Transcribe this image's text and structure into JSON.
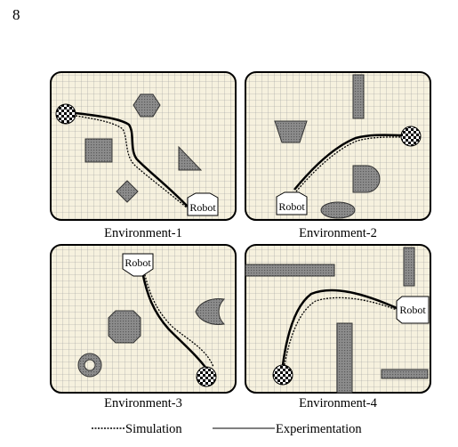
{
  "page_number": "8",
  "robot_label": "Robot",
  "panels": [
    {
      "caption": "Environment-1"
    },
    {
      "caption": "Environment-2"
    },
    {
      "caption": "Environment-3"
    },
    {
      "caption": "Environment-4"
    }
  ],
  "legend": {
    "simulation": "Simulation",
    "experimentation": "Experimentation"
  },
  "colors": {
    "grid_background": "#f6f1de",
    "grid_line": "#9a9a9a",
    "obstacle_fill": "#8c8c8c"
  }
}
